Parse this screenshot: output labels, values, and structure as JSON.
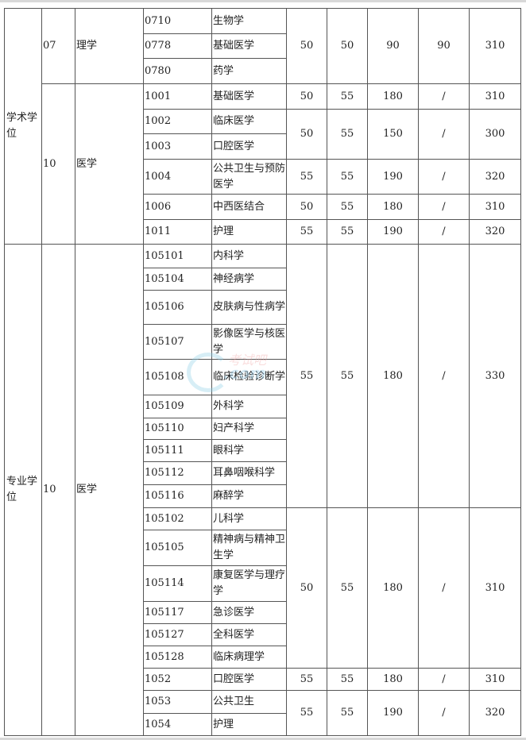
{
  "watermark": {
    "logo_text": "考试吧",
    "domain_text": ".com"
  },
  "sections": [
    {
      "category": "学术学位",
      "disciplines": [
        {
          "code": "07",
          "name": "理学",
          "score_groups": [
            {
              "scores": [
                "50",
                "50",
                "90",
                "90",
                "310"
              ],
              "subjects": [
                [
                  "0710",
                  "生物学"
                ],
                [
                  "0778",
                  "基础医学"
                ],
                [
                  "0780",
                  "药学"
                ]
              ]
            }
          ]
        },
        {
          "code": "10",
          "name": "医学",
          "score_groups": [
            {
              "scores": [
                "50",
                "55",
                "180",
                "/",
                "310"
              ],
              "subjects": [
                [
                  "1001",
                  "基础医学"
                ]
              ]
            },
            {
              "scores": [
                "50",
                "55",
                "150",
                "/",
                "300"
              ],
              "subjects": [
                [
                  "1002",
                  "临床医学"
                ],
                [
                  "1003",
                  "口腔医学"
                ]
              ]
            },
            {
              "scores": [
                "55",
                "55",
                "190",
                "/",
                "320"
              ],
              "subjects": [
                [
                  "1004",
                  "公共卫生与预防医学"
                ]
              ]
            },
            {
              "scores": [
                "50",
                "55",
                "180",
                "/",
                "310"
              ],
              "subjects": [
                [
                  "1006",
                  "中西医结合"
                ]
              ]
            },
            {
              "scores": [
                "55",
                "55",
                "190",
                "/",
                "320"
              ],
              "subjects": [
                [
                  "1011",
                  "护理"
                ]
              ]
            }
          ]
        }
      ]
    },
    {
      "category": "专业学位",
      "disciplines": [
        {
          "code": "10",
          "name": "医学",
          "score_groups": [
            {
              "scores": [
                "55",
                "55",
                "180",
                "/",
                "330"
              ],
              "subjects": [
                [
                  "105101",
                  "内科学"
                ],
                [
                  "105104",
                  "神经病学"
                ],
                [
                  "105106",
                  "皮肤病与性病学"
                ],
                [
                  "105107",
                  "影像医学与核医学"
                ],
                [
                  "105108",
                  "临床检验诊断学"
                ],
                [
                  "105109",
                  "外科学"
                ],
                [
                  "105110",
                  "妇产科学"
                ],
                [
                  "105111",
                  "眼科学"
                ],
                [
                  "105112",
                  "耳鼻咽喉科学"
                ],
                [
                  "105116",
                  "麻醉学"
                ]
              ]
            },
            {
              "scores": [
                "50",
                "55",
                "180",
                "/",
                "310"
              ],
              "subjects": [
                [
                  "105102",
                  "儿科学"
                ],
                [
                  "105105",
                  "精神病与精神卫生学"
                ],
                [
                  "105114",
                  "康复医学与理疗学"
                ],
                [
                  "105117",
                  "急诊医学"
                ],
                [
                  "105127",
                  "全科医学"
                ],
                [
                  "105128",
                  "临床病理学"
                ]
              ]
            },
            {
              "scores": [
                "55",
                "55",
                "180",
                "/",
                "310"
              ],
              "subjects": [
                [
                  "1052",
                  "口腔医学"
                ]
              ]
            },
            {
              "scores": [
                "55",
                "55",
                "190",
                "/",
                "320"
              ],
              "subjects": [
                [
                  "1053",
                  "公共卫生"
                ],
                [
                  "1054",
                  "护理"
                ]
              ]
            }
          ]
        }
      ]
    }
  ]
}
